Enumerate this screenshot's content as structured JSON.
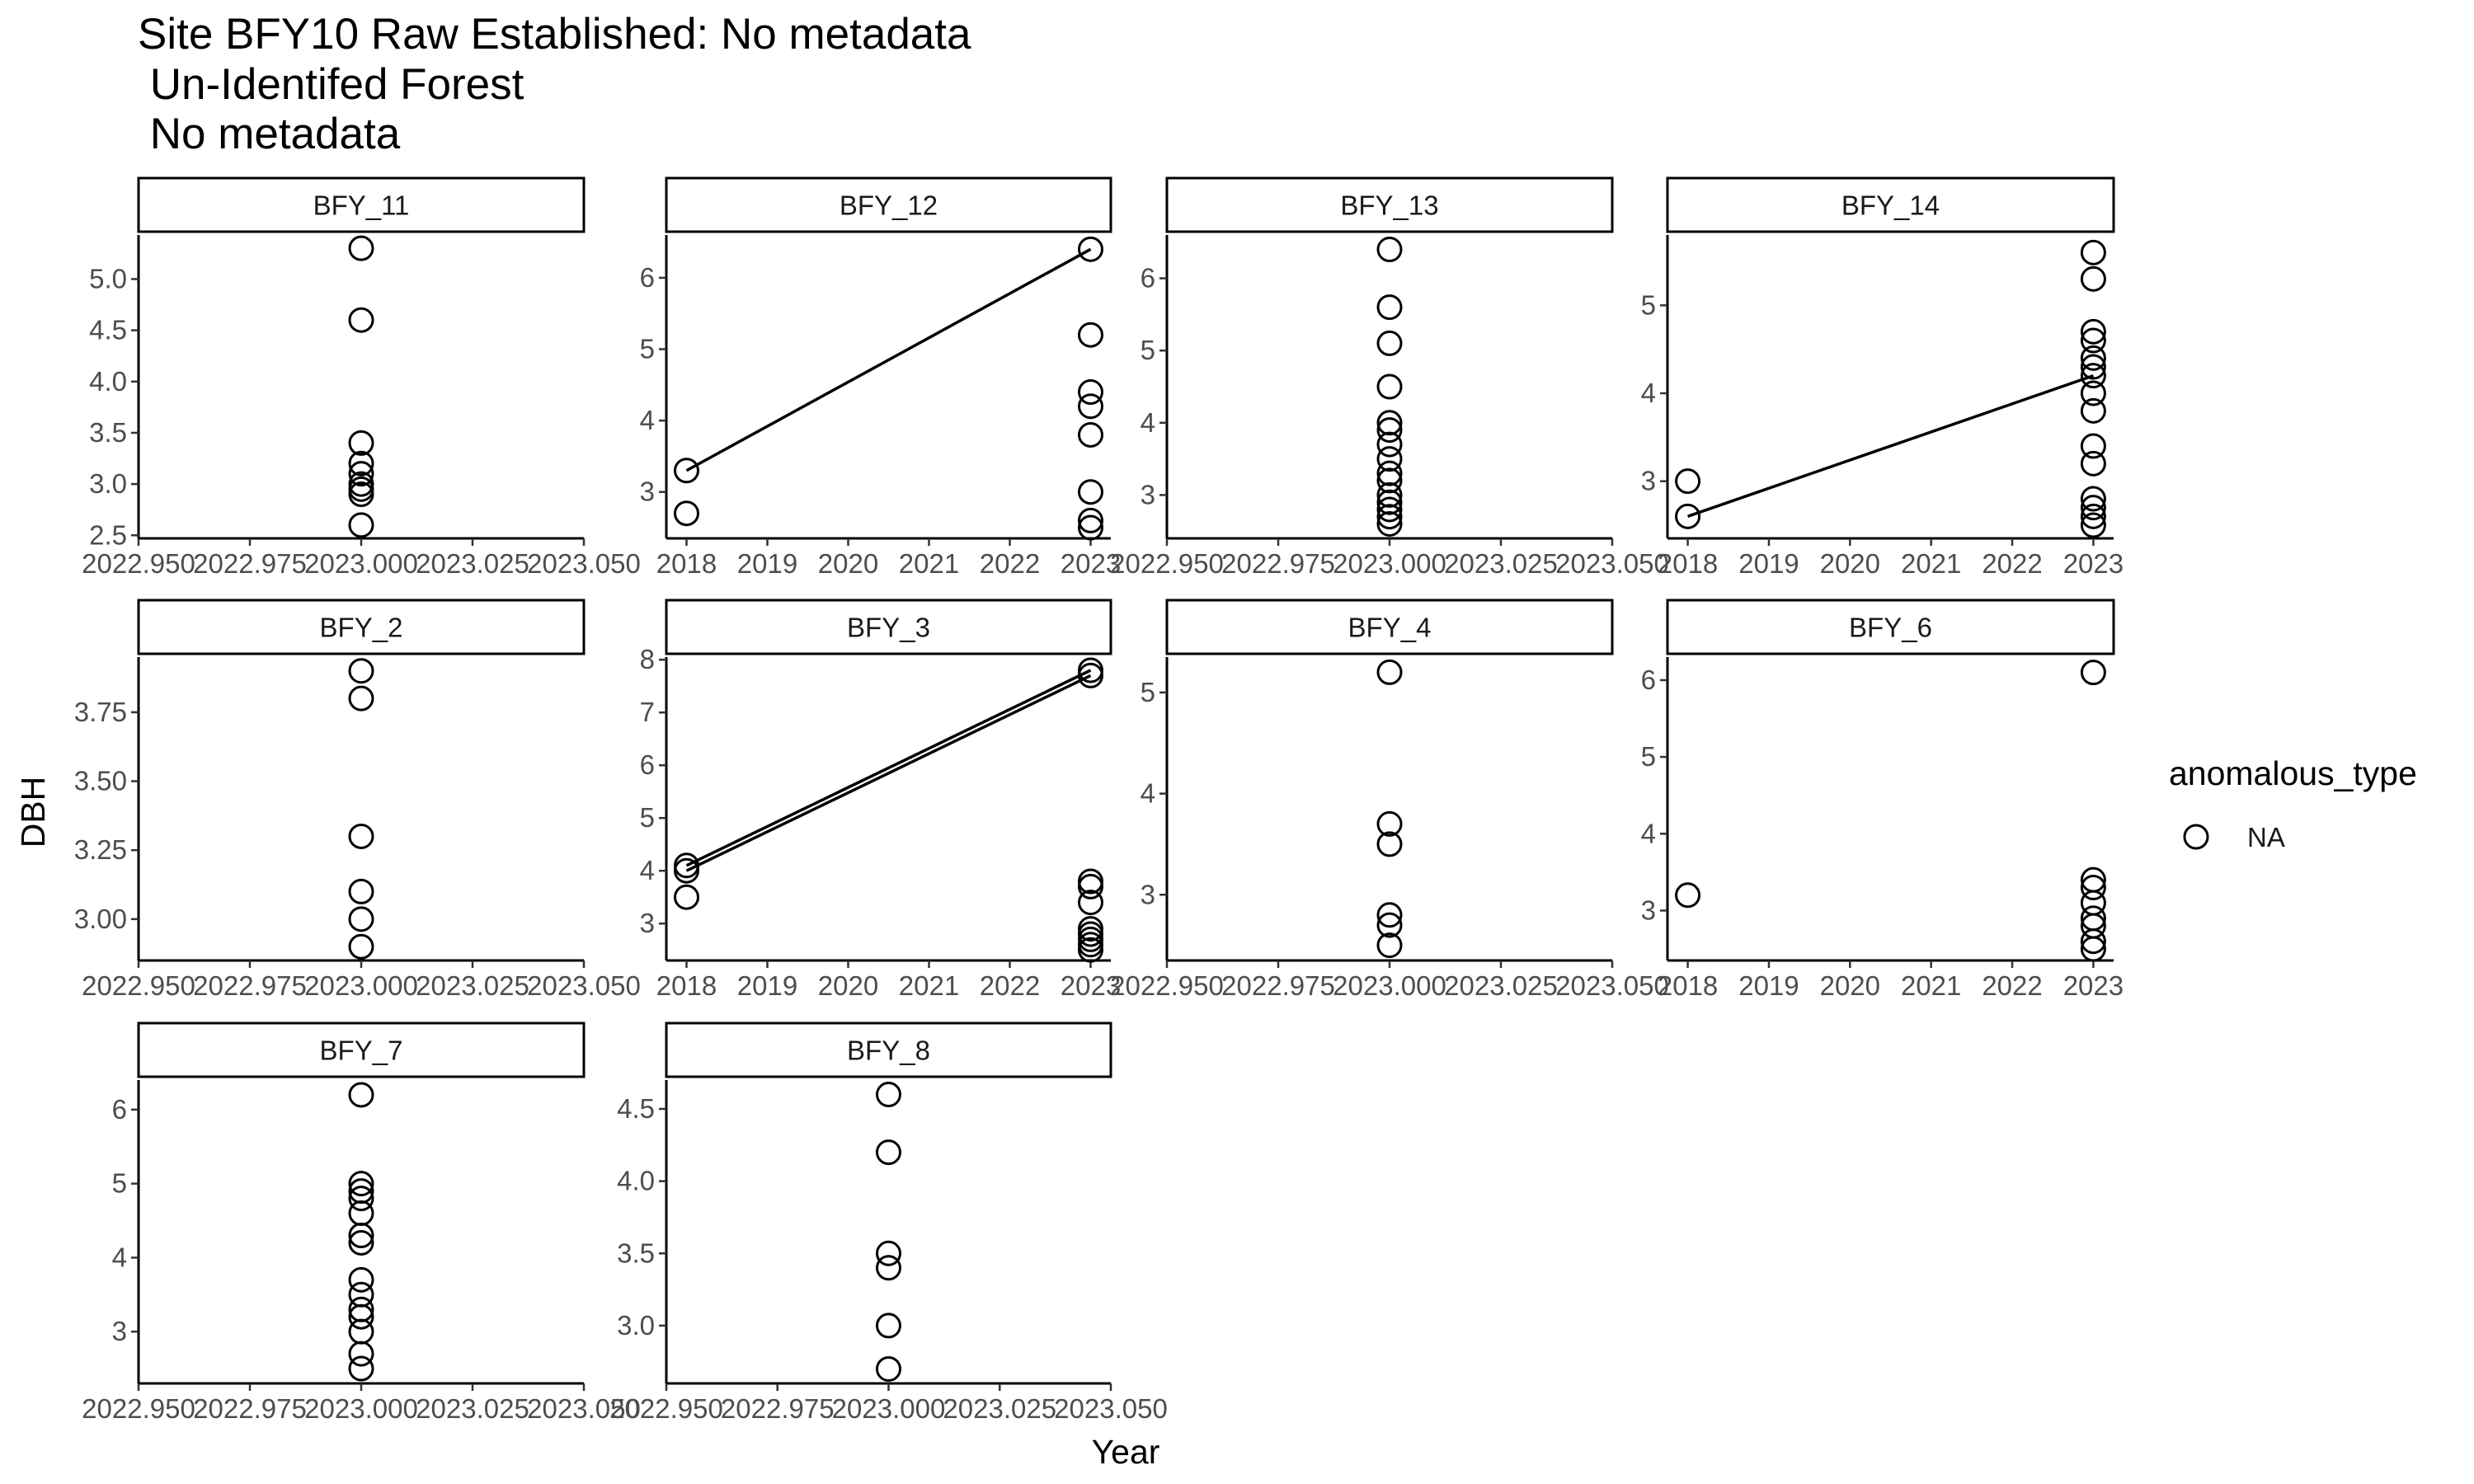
{
  "chart_data": {
    "type": "scatter",
    "title_lines": [
      "Site BFY10 Raw Established: No metadata",
      " Un-Identifed Forest",
      " No metadata"
    ],
    "xlabel": "Year",
    "ylabel": "DBH",
    "legend": {
      "title": "anomalous_type",
      "entries": [
        "NA"
      ],
      "position": "right"
    },
    "grid": false,
    "panels": [
      {
        "name": "BFY_11",
        "xlim": [
          2022.95,
          2023.05
        ],
        "xticks": [
          "2022.950",
          "2022.975",
          "2023.000",
          "2023.025",
          "2023.050"
        ],
        "ylim": [
          2.47,
          5.43
        ],
        "yticks": [
          "2.5",
          "3.0",
          "3.5",
          "4.0",
          "4.5",
          "5.0"
        ],
        "points": [
          [
            2023,
            5.3
          ],
          [
            2023,
            4.6
          ],
          [
            2023,
            3.4
          ],
          [
            2023,
            3.2
          ],
          [
            2023,
            3.1
          ],
          [
            2023,
            3.0
          ],
          [
            2023,
            2.95
          ],
          [
            2023,
            2.9
          ],
          [
            2023,
            2.6
          ]
        ],
        "lines": []
      },
      {
        "name": "BFY_12",
        "xlim": [
          2017.75,
          2023.25
        ],
        "xticks": [
          "2018",
          "2019",
          "2020",
          "2021",
          "2022",
          "2023"
        ],
        "ylim": [
          2.35,
          6.6
        ],
        "yticks": [
          "3",
          "4",
          "5",
          "6"
        ],
        "points": [
          [
            2018,
            3.3
          ],
          [
            2018,
            2.7
          ],
          [
            2023,
            6.4
          ],
          [
            2023,
            5.2
          ],
          [
            2023,
            4.4
          ],
          [
            2023,
            4.2
          ],
          [
            2023,
            3.8
          ],
          [
            2023,
            3.0
          ],
          [
            2023,
            2.6
          ],
          [
            2023,
            2.5
          ]
        ],
        "lines": [
          [
            [
              2018,
              3.3
            ],
            [
              2023,
              6.4
            ]
          ]
        ]
      },
      {
        "name": "BFY_13",
        "xlim": [
          2022.95,
          2023.05
        ],
        "xticks": [
          "2022.950",
          "2022.975",
          "2023.000",
          "2023.025",
          "2023.050"
        ],
        "ylim": [
          2.4,
          6.6
        ],
        "yticks": [
          "3",
          "4",
          "5",
          "6"
        ],
        "points": [
          [
            2023,
            6.4
          ],
          [
            2023,
            5.6
          ],
          [
            2023,
            5.1
          ],
          [
            2023,
            4.5
          ],
          [
            2023,
            4.0
          ],
          [
            2023,
            3.9
          ],
          [
            2023,
            3.7
          ],
          [
            2023,
            3.5
          ],
          [
            2023,
            3.3
          ],
          [
            2023,
            3.2
          ],
          [
            2023,
            3.0
          ],
          [
            2023,
            2.9
          ],
          [
            2023,
            2.8
          ],
          [
            2023,
            2.7
          ],
          [
            2023,
            2.6
          ]
        ],
        "lines": []
      },
      {
        "name": "BFY_14",
        "xlim": [
          2017.75,
          2023.25
        ],
        "xticks": [
          "2018",
          "2019",
          "2020",
          "2021",
          "2022",
          "2023"
        ],
        "ylim": [
          2.35,
          5.8
        ],
        "yticks": [
          "3",
          "4",
          "5"
        ],
        "points": [
          [
            2018,
            3.0
          ],
          [
            2018,
            2.6
          ],
          [
            2023,
            5.6
          ],
          [
            2023,
            5.3
          ],
          [
            2023,
            4.7
          ],
          [
            2023,
            4.6
          ],
          [
            2023,
            4.4
          ],
          [
            2023,
            4.3
          ],
          [
            2023,
            4.2
          ],
          [
            2023,
            4.0
          ],
          [
            2023,
            3.8
          ],
          [
            2023,
            3.4
          ],
          [
            2023,
            3.2
          ],
          [
            2023,
            2.8
          ],
          [
            2023,
            2.7
          ],
          [
            2023,
            2.6
          ],
          [
            2023,
            2.5
          ]
        ],
        "lines": [
          [
            [
              2018,
              2.6
            ],
            [
              2023,
              4.2
            ]
          ]
        ]
      },
      {
        "name": "BFY_2",
        "xlim": [
          2022.95,
          2023.05
        ],
        "xticks": [
          "2022.950",
          "2022.975",
          "2023.000",
          "2023.025",
          "2023.050"
        ],
        "ylim": [
          2.85,
          3.95
        ],
        "yticks": [
          "3.00",
          "3.25",
          "3.50",
          "3.75"
        ],
        "points": [
          [
            2023,
            3.9
          ],
          [
            2023,
            3.8
          ],
          [
            2023,
            3.3
          ],
          [
            2023,
            3.1
          ],
          [
            2023,
            3.0
          ],
          [
            2023,
            2.9
          ]
        ],
        "lines": []
      },
      {
        "name": "BFY_3",
        "xlim": [
          2017.75,
          2023.25
        ],
        "xticks": [
          "2018",
          "2019",
          "2020",
          "2021",
          "2022",
          "2023"
        ],
        "ylim": [
          2.3,
          8.05
        ],
        "yticks": [
          "3",
          "4",
          "5",
          "6",
          "7",
          "8"
        ],
        "points": [
          [
            2018,
            4.1
          ],
          [
            2018,
            4.0
          ],
          [
            2018,
            3.5
          ],
          [
            2023,
            7.8
          ],
          [
            2023,
            7.7
          ],
          [
            2023,
            3.8
          ],
          [
            2023,
            3.7
          ],
          [
            2023,
            3.4
          ],
          [
            2023,
            2.9
          ],
          [
            2023,
            2.8
          ],
          [
            2023,
            2.7
          ],
          [
            2023,
            2.6
          ],
          [
            2023,
            2.5
          ]
        ],
        "lines": [
          [
            [
              2018,
              4.1
            ],
            [
              2023,
              7.8
            ]
          ],
          [
            [
              2018,
              4.0
            ],
            [
              2023,
              7.7
            ]
          ]
        ]
      },
      {
        "name": "BFY_4",
        "xlim": [
          2022.95,
          2023.05
        ],
        "xticks": [
          "2022.950",
          "2022.975",
          "2023.000",
          "2023.025",
          "2023.050"
        ],
        "ylim": [
          2.35,
          5.35
        ],
        "yticks": [
          "3",
          "4",
          "5"
        ],
        "points": [
          [
            2023,
            5.2
          ],
          [
            2023,
            3.7
          ],
          [
            2023,
            3.5
          ],
          [
            2023,
            2.8
          ],
          [
            2023,
            2.7
          ],
          [
            2023,
            2.5
          ]
        ],
        "lines": []
      },
      {
        "name": "BFY_6",
        "xlim": [
          2017.75,
          2023.25
        ],
        "xticks": [
          "2018",
          "2019",
          "2020",
          "2021",
          "2022",
          "2023"
        ],
        "ylim": [
          2.35,
          6.3
        ],
        "yticks": [
          "3",
          "4",
          "5",
          "6"
        ],
        "points": [
          [
            2018,
            3.2
          ],
          [
            2023,
            6.1
          ],
          [
            2023,
            3.4
          ],
          [
            2023,
            3.3
          ],
          [
            2023,
            3.1
          ],
          [
            2023,
            2.9
          ],
          [
            2023,
            2.8
          ],
          [
            2023,
            2.6
          ],
          [
            2023,
            2.5
          ]
        ],
        "lines": []
      },
      {
        "name": "BFY_7",
        "xlim": [
          2022.95,
          2023.05
        ],
        "xticks": [
          "2022.950",
          "2022.975",
          "2023.000",
          "2023.025",
          "2023.050"
        ],
        "ylim": [
          2.3,
          6.4
        ],
        "yticks": [
          "3",
          "4",
          "5",
          "6"
        ],
        "points": [
          [
            2023,
            6.2
          ],
          [
            2023,
            5.0
          ],
          [
            2023,
            4.9
          ],
          [
            2023,
            4.8
          ],
          [
            2023,
            4.6
          ],
          [
            2023,
            4.3
          ],
          [
            2023,
            4.2
          ],
          [
            2023,
            3.7
          ],
          [
            2023,
            3.5
          ],
          [
            2023,
            3.3
          ],
          [
            2023,
            3.2
          ],
          [
            2023,
            3.0
          ],
          [
            2023,
            2.7
          ],
          [
            2023,
            2.5
          ]
        ],
        "lines": []
      },
      {
        "name": "BFY_8",
        "xlim": [
          2022.95,
          2023.05
        ],
        "xticks": [
          "2022.950",
          "2022.975",
          "2023.000",
          "2023.025",
          "2023.050"
        ],
        "ylim": [
          2.6,
          4.7
        ],
        "yticks": [
          "3.0",
          "3.5",
          "4.0",
          "4.5"
        ],
        "points": [
          [
            2023,
            4.6
          ],
          [
            2023,
            4.2
          ],
          [
            2023,
            3.5
          ],
          [
            2023,
            3.4
          ],
          [
            2023,
            3.0
          ],
          [
            2023,
            2.7
          ]
        ],
        "lines": []
      }
    ]
  }
}
